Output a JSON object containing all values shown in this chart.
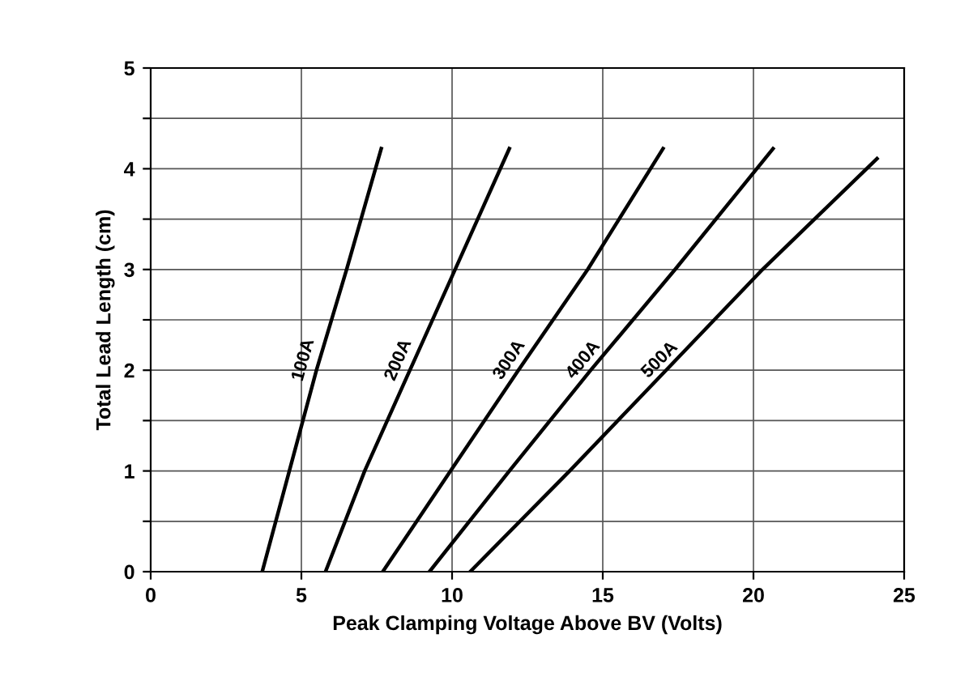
{
  "chart_data": {
    "type": "line",
    "xlabel": "Peak Clamping Voltage Above BV (Volts)",
    "ylabel": "Total Lead Length (cm)",
    "xlim": [
      0,
      25
    ],
    "xticks": [
      0,
      5,
      10,
      15,
      20,
      25
    ],
    "ylim": [
      0,
      5
    ],
    "yticks": [
      0,
      {
        "value": 0.5,
        "label": null
      },
      1,
      {
        "value": 1.5,
        "label": null
      },
      2,
      {
        "value": 2.5,
        "label": null
      },
      3,
      {
        "value": 3.5,
        "label": null
      },
      4,
      {
        "value": 4.5,
        "label": null
      },
      5
    ],
    "grid": true,
    "marker": "none",
    "line_style": "solid",
    "series": [
      {
        "name": "100A",
        "color": "#000000",
        "x": [
          3.7,
          4.6,
          5.5,
          6.5,
          7.65
        ],
        "values": [
          0,
          1,
          2,
          3,
          4.2
        ]
      },
      {
        "name": "200A",
        "color": "#000000",
        "x": [
          5.8,
          7.1,
          8.6,
          10.1,
          11.9
        ],
        "values": [
          0,
          1,
          2,
          3,
          4.2
        ]
      },
      {
        "name": "300A",
        "color": "#000000",
        "x": [
          7.7,
          9.95,
          12.2,
          14.5,
          17.0
        ],
        "values": [
          0,
          1,
          2,
          3,
          4.2
        ]
      },
      {
        "name": "400A",
        "color": "#000000",
        "x": [
          9.25,
          11.9,
          14.6,
          17.4,
          20.65
        ],
        "values": [
          0,
          1,
          2,
          3,
          4.2
        ]
      },
      {
        "name": "500A",
        "color": "#000000",
        "x": [
          10.6,
          13.9,
          17.1,
          20.3,
          24.1
        ],
        "values": [
          0,
          1,
          2,
          3,
          4.1
        ]
      }
    ]
  }
}
